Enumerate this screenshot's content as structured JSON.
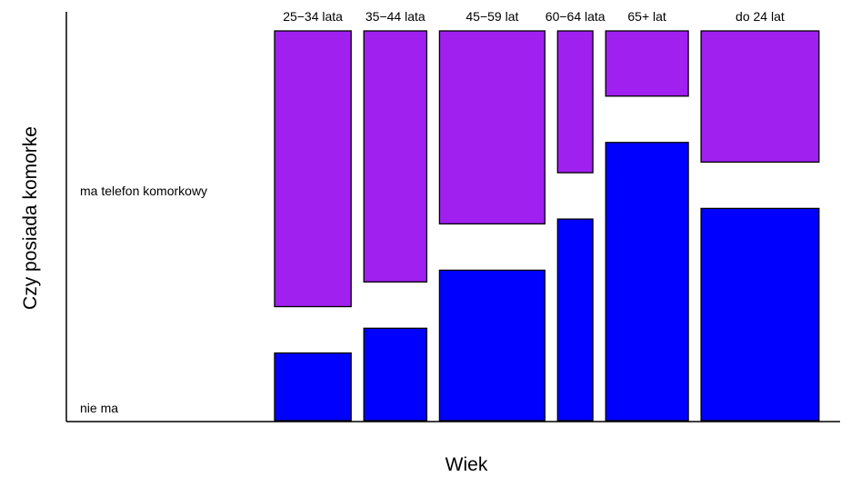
{
  "chart_data": {
    "type": "mosaic",
    "xlabel": "Wiek",
    "ylabel": "Czy posiada komorke",
    "row_labels": [
      "ma telefon komorkowy",
      "nie ma"
    ],
    "categories": [
      "25−34 lata",
      "35−44 lata",
      "45−59 lat",
      "60−64 lata",
      "65+ lat",
      "do 24 lat"
    ],
    "column_share": [
      0.1574,
      0.1294,
      0.2166,
      0.0726,
      0.1699,
      0.2425
    ],
    "series": [
      {
        "name": "ma telefon komorkowy",
        "values": [
          0.803,
          0.731,
          0.562,
          0.413,
          0.19,
          0.382
        ],
        "color": "#a020f0"
      },
      {
        "name": "nie ma",
        "values": [
          0.197,
          0.269,
          0.438,
          0.587,
          0.81,
          0.618
        ],
        "color": "#0000ff"
      }
    ]
  }
}
